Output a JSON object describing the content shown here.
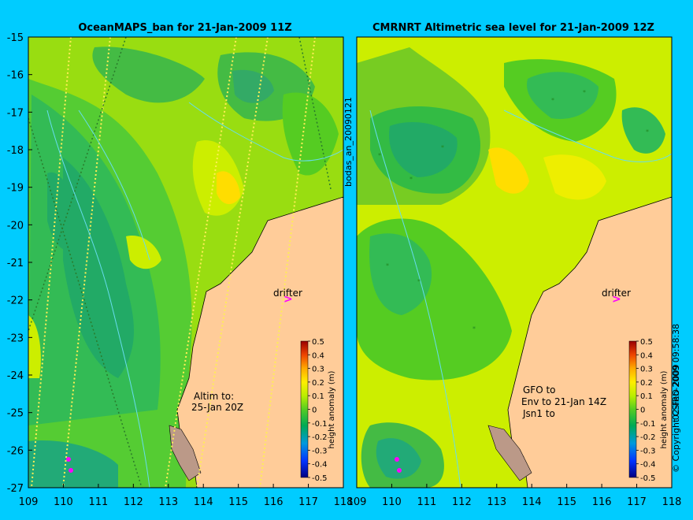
{
  "left_map": {
    "title": "OceanMAPS_ban for 21-Jan-2009 11Z",
    "note_line1": "Altim to:",
    "note_line2": "25-Jan 20Z",
    "drifter_label": "drifter",
    "side_label": "bodas_an_20090121",
    "colorbar_label": "height anomaly (m)"
  },
  "right_map": {
    "title": "CMRNRT Altimetric sea level  for 21-Jan-2009 12Z",
    "note_line1": "GFO to",
    "note_line2": "Env to 21-Jan 14Z",
    "note_line3": "Jsn1 to",
    "drifter_label": "drifter",
    "side_label": "02-Feb-2009 09:58:38",
    "copyright": "© Copyright CSIRO 2009",
    "colorbar_label": "height anomaly (m)"
  },
  "axes": {
    "y_ticks": [
      "-15",
      "-16",
      "-17",
      "-18",
      "-19",
      "-20",
      "-21",
      "-22",
      "-23",
      "-24",
      "-25",
      "-26",
      "-27"
    ],
    "x_ticks": [
      "109",
      "110",
      "111",
      "112",
      "113",
      "114",
      "115",
      "116",
      "117",
      "118"
    ],
    "lon_range": [
      109,
      118
    ],
    "lat_range": [
      -27,
      -15
    ]
  },
  "colorbar": {
    "ticks": [
      "0.5",
      "0.4",
      "0.3",
      "0.2",
      "0.1",
      "0",
      "-0.1",
      "-0.2",
      "-0.3",
      "-0.4",
      "-0.5"
    ],
    "colors": [
      "#000080",
      "#0000cc",
      "#0044ff",
      "#0099ff",
      "#00bbcc",
      "#00aa66",
      "#33bb33",
      "#66cc22",
      "#99dd00",
      "#ccee00",
      "#eeee00",
      "#ffdd00",
      "#ffaa00",
      "#ff7700",
      "#ee4400",
      "#cc1100",
      "#990000"
    ]
  },
  "colors": {
    "background": "#00ccff",
    "land": "#ffcc99",
    "drifter": "#ff00ff"
  }
}
